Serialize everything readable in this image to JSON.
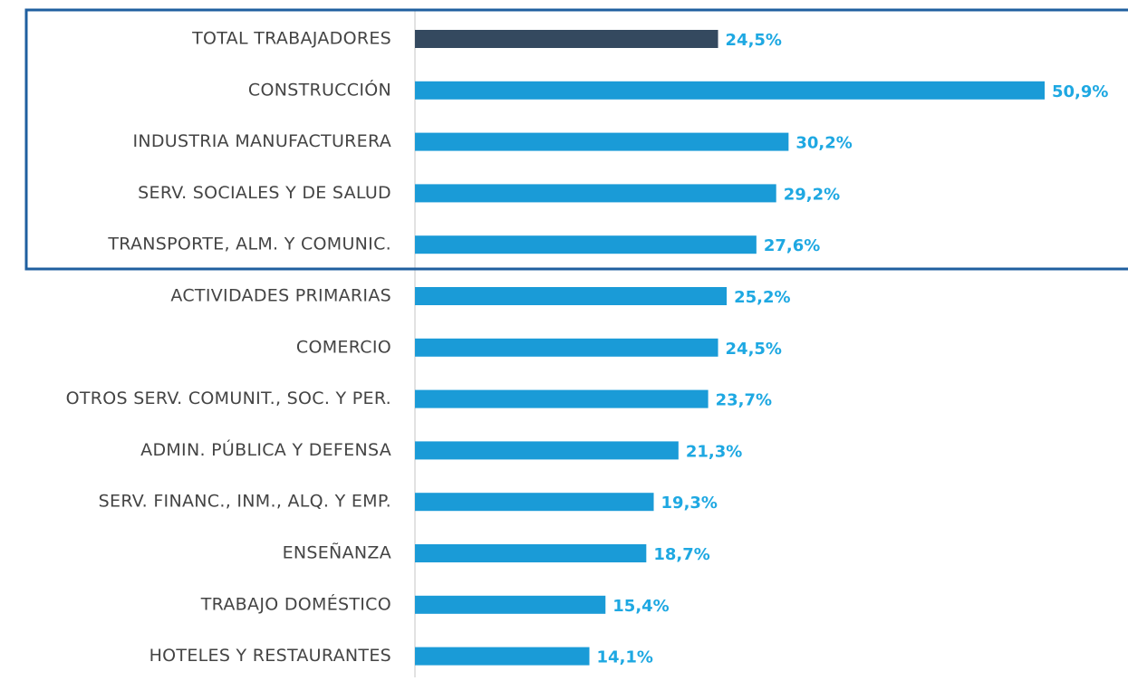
{
  "chart_data": {
    "type": "hbar",
    "categories": [
      "TOTAL TRABAJADORES",
      "CONSTRUCCIÓN",
      "INDUSTRIA MANUFACTURERA",
      "SERV. SOCIALES Y DE SALUD",
      "TRANSPORTE, ALM. Y COMUNIC.",
      "ACTIVIDADES PRIMARIAS",
      "COMERCIO",
      "OTROS SERV. COMUNIT., SOC. Y PER.",
      "ADMIN. PÚBLICA Y DEFENSA",
      "SERV. FINANC., INM., ALQ. Y EMP.",
      "ENSEÑANZA",
      "TRABAJO DOMÉSTICO",
      "HOTELES Y RESTAURANTES"
    ],
    "values": [
      24.5,
      50.9,
      30.2,
      29.2,
      27.6,
      25.2,
      24.5,
      23.7,
      21.3,
      19.3,
      18.7,
      15.4,
      14.1
    ],
    "value_labels": [
      "24,5%",
      "50,9%",
      "30,2%",
      "29,2%",
      "27,6%",
      "25,2%",
      "24,5%",
      "23,7%",
      "21,3%",
      "19,3%",
      "18,7%",
      "15,4%",
      "14,1%"
    ],
    "colors": [
      "#34495f",
      "#1a9bd7",
      "#1a9bd7",
      "#1a9bd7",
      "#1a9bd7",
      "#1a9bd7",
      "#1a9bd7",
      "#1a9bd7",
      "#1a9bd7",
      "#1a9bd7",
      "#1a9bd7",
      "#1a9bd7",
      "#1a9bd7"
    ],
    "label_color": "#1ea8e2"
  }
}
